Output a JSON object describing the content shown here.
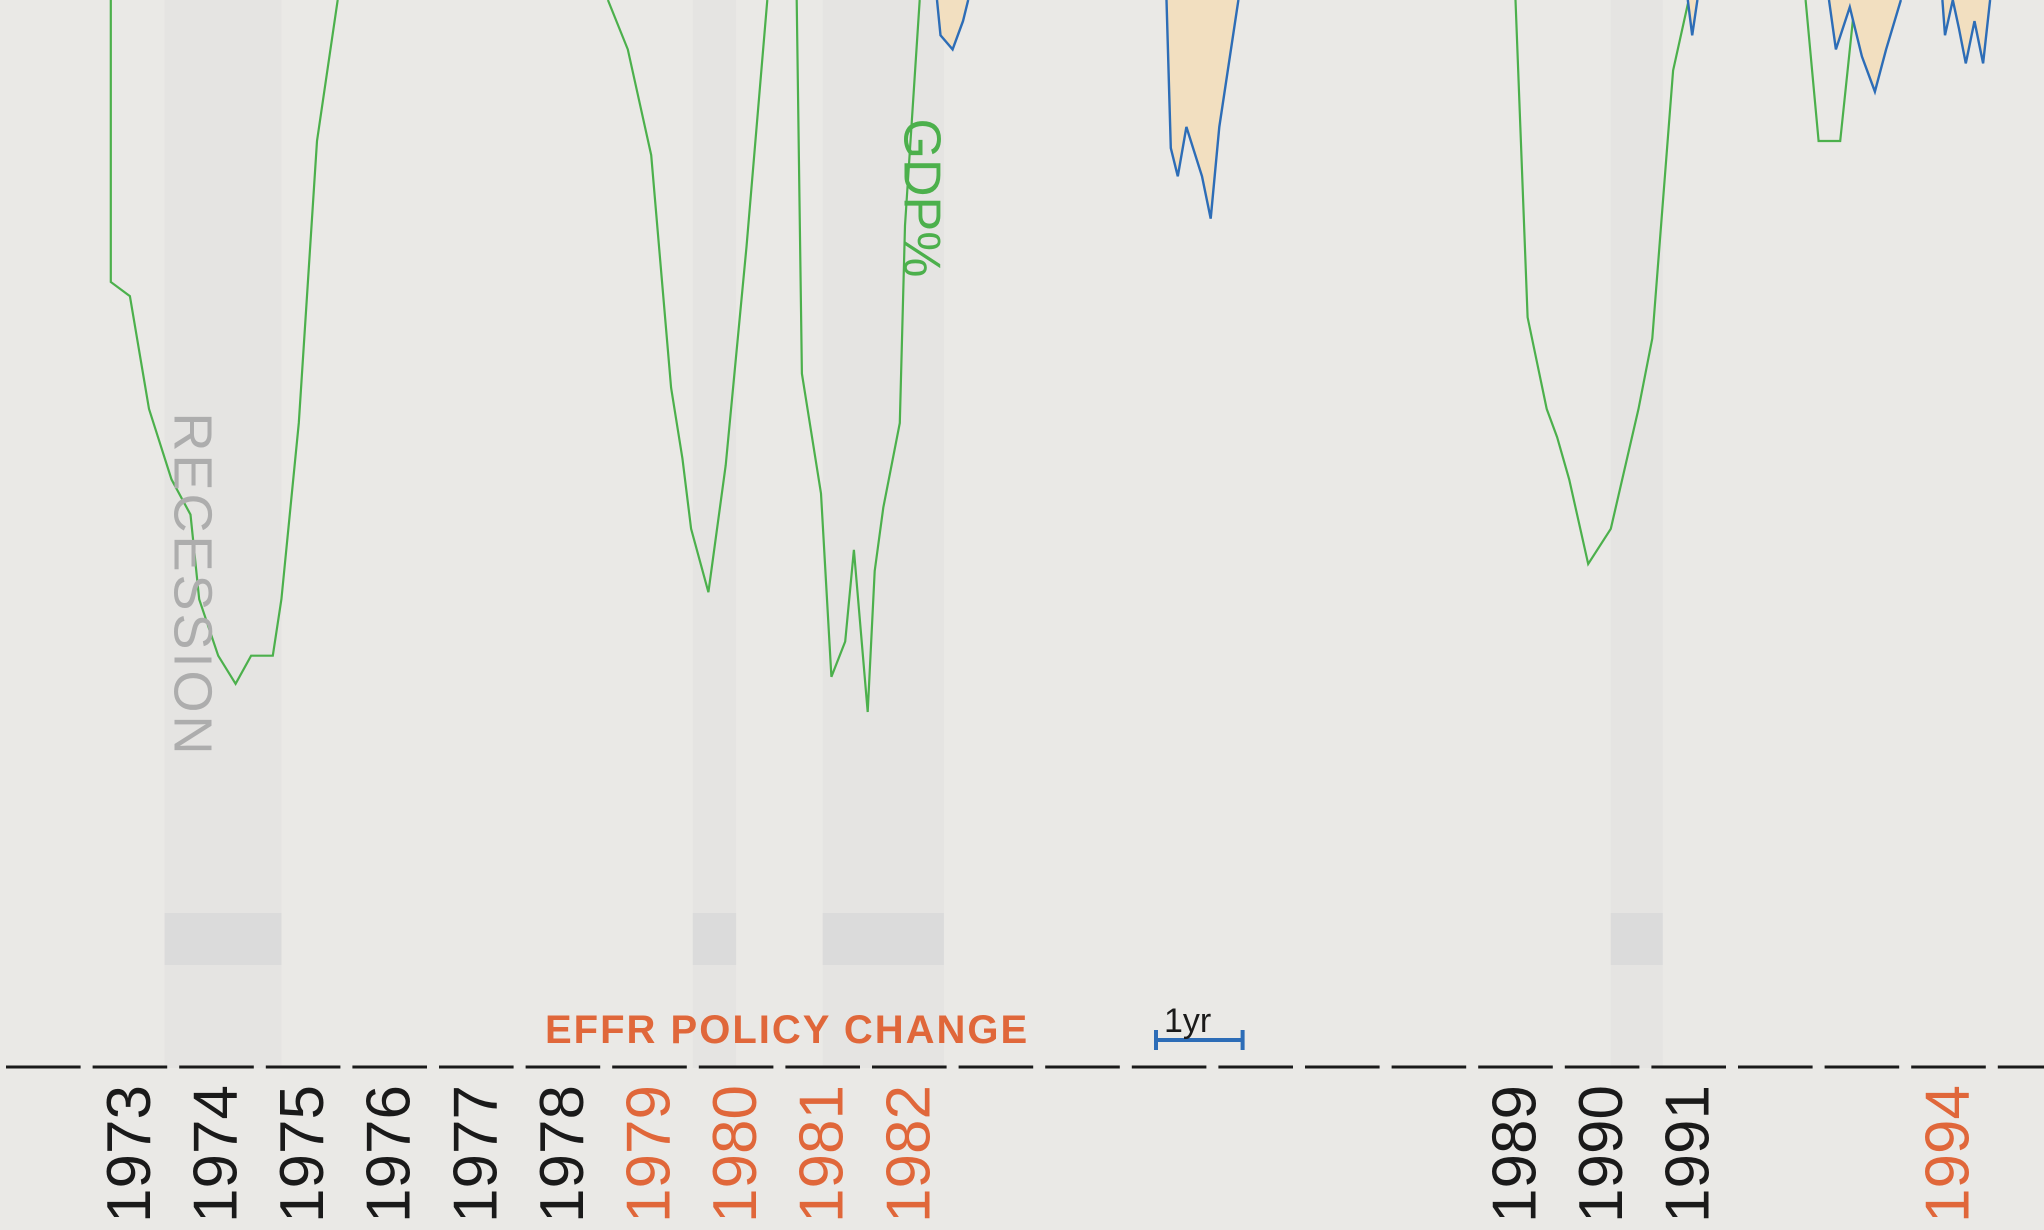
{
  "colors": {
    "background": "#eae9e6",
    "recession_band": "#d9d9d9",
    "recession_text": "#adadad",
    "gdp_line": "#4cb04c",
    "blue_line": "#2d6db7",
    "blue_fill": "#f2dfc0",
    "policy_accent": "#e0673a",
    "axis_text": "#1a1a1a",
    "axis_line": "#1a1a1a"
  },
  "labels": {
    "recession": "RECESSION",
    "gdp": "GDP%",
    "policy_change": "EFFR POLICY CHANGE",
    "scale": "1yr"
  },
  "chart_data": {
    "type": "line",
    "x_axis": {
      "type": "date",
      "range": [
        1972.0,
        1995.6
      ],
      "tick_labels": [
        {
          "year": "1973",
          "highlight": false
        },
        {
          "year": "1974",
          "highlight": false
        },
        {
          "year": "1975",
          "highlight": false
        },
        {
          "year": "1976",
          "highlight": false
        },
        {
          "year": "1977",
          "highlight": false
        },
        {
          "year": "1978",
          "highlight": false
        },
        {
          "year": "1979",
          "highlight": true
        },
        {
          "year": "1980",
          "highlight": true
        },
        {
          "year": "1981",
          "highlight": true
        },
        {
          "year": "1982",
          "highlight": true
        },
        {
          "year": "1989",
          "highlight": false
        },
        {
          "year": "1990",
          "highlight": false
        },
        {
          "year": "1991",
          "highlight": false
        },
        {
          "year": "1994",
          "highlight": true
        }
      ]
    },
    "recessions": [
      {
        "start": 1973.9,
        "end": 1975.25
      },
      {
        "start": 1980.0,
        "end": 1980.5
      },
      {
        "start": 1981.5,
        "end": 1982.9
      },
      {
        "start": 1990.6,
        "end": 1991.2
      }
    ],
    "series": [
      {
        "name": "GDP%",
        "points": [
          [
            1973.28,
            4.0
          ],
          [
            1973.28,
            0.0
          ],
          [
            1973.5,
            -0.2
          ],
          [
            1973.72,
            -1.8
          ],
          [
            1973.98,
            -2.8
          ],
          [
            1974.2,
            -3.3
          ],
          [
            1974.3,
            -4.5
          ],
          [
            1974.52,
            -5.3
          ],
          [
            1974.72,
            -5.7
          ],
          [
            1974.9,
            -5.3
          ],
          [
            1975.15,
            -5.3
          ],
          [
            1975.25,
            -4.5
          ],
          [
            1975.45,
            -2.0
          ],
          [
            1975.66,
            2.0
          ],
          [
            1975.9,
            4.0
          ],
          [
            1979.02,
            4.0
          ],
          [
            1979.25,
            3.3
          ],
          [
            1979.52,
            1.8
          ],
          [
            1979.75,
            -1.5
          ],
          [
            1979.88,
            -2.5
          ],
          [
            1979.98,
            -3.5
          ],
          [
            1980.18,
            -4.4
          ],
          [
            1980.38,
            -2.6
          ],
          [
            1980.62,
            0.5
          ],
          [
            1980.86,
            4.0
          ],
          [
            1981.2,
            4.0
          ],
          [
            1981.26,
            -1.3
          ],
          [
            1981.48,
            -3.0
          ],
          [
            1981.6,
            -5.6
          ],
          [
            1981.76,
            -5.1
          ],
          [
            1981.86,
            -3.8
          ],
          [
            1982.02,
            -6.1
          ],
          [
            1982.1,
            -4.1
          ],
          [
            1982.2,
            -3.2
          ],
          [
            1982.39,
            -2.0
          ],
          [
            1982.45,
            0.8
          ],
          [
            1982.62,
            4.0
          ],
          [
            1989.5,
            4.0
          ],
          [
            1989.64,
            -0.5
          ],
          [
            1989.86,
            -1.8
          ],
          [
            1989.98,
            -2.2
          ],
          [
            1990.12,
            -2.8
          ],
          [
            1990.34,
            -4.0
          ],
          [
            1990.6,
            -3.5
          ],
          [
            1990.92,
            -1.8
          ],
          [
            1991.08,
            -0.8
          ],
          [
            1991.32,
            3.0
          ],
          [
            1991.5,
            4.0
          ],
          [
            1992.85,
            4.0
          ],
          [
            1993.0,
            2.0
          ],
          [
            1993.25,
            2.0
          ],
          [
            1993.42,
            4.0
          ]
        ]
      },
      {
        "name": "EFFR",
        "segments": [
          [
            [
              1982.82,
              4.0
            ],
            [
              1982.86,
              3.5
            ],
            [
              1983.0,
              3.3
            ],
            [
              1983.12,
              3.7
            ],
            [
              1983.18,
              4.0
            ]
          ],
          [
            [
              1985.47,
              4.0
            ],
            [
              1985.52,
              1.9
            ],
            [
              1985.6,
              1.5
            ],
            [
              1985.7,
              2.2
            ],
            [
              1985.88,
              1.5
            ],
            [
              1985.98,
              0.9
            ],
            [
              1986.08,
              2.2
            ],
            [
              1986.3,
              4.0
            ]
          ],
          [
            [
              1991.49,
              4.0
            ],
            [
              1991.54,
              3.5
            ],
            [
              1991.6,
              4.0
            ]
          ],
          [
            [
              1993.12,
              4.0
            ],
            [
              1993.2,
              3.3
            ],
            [
              1993.36,
              3.9
            ],
            [
              1993.5,
              3.2
            ],
            [
              1993.65,
              2.7
            ],
            [
              1993.78,
              3.3
            ],
            [
              1993.95,
              4.0
            ]
          ],
          [
            [
              1994.43,
              4.0
            ],
            [
              1994.46,
              3.5
            ],
            [
              1994.55,
              4.0
            ],
            [
              1994.62,
              3.6
            ],
            [
              1994.7,
              3.1
            ],
            [
              1994.8,
              3.7
            ],
            [
              1994.9,
              3.1
            ],
            [
              1994.98,
              4.0
            ]
          ]
        ]
      }
    ]
  }
}
